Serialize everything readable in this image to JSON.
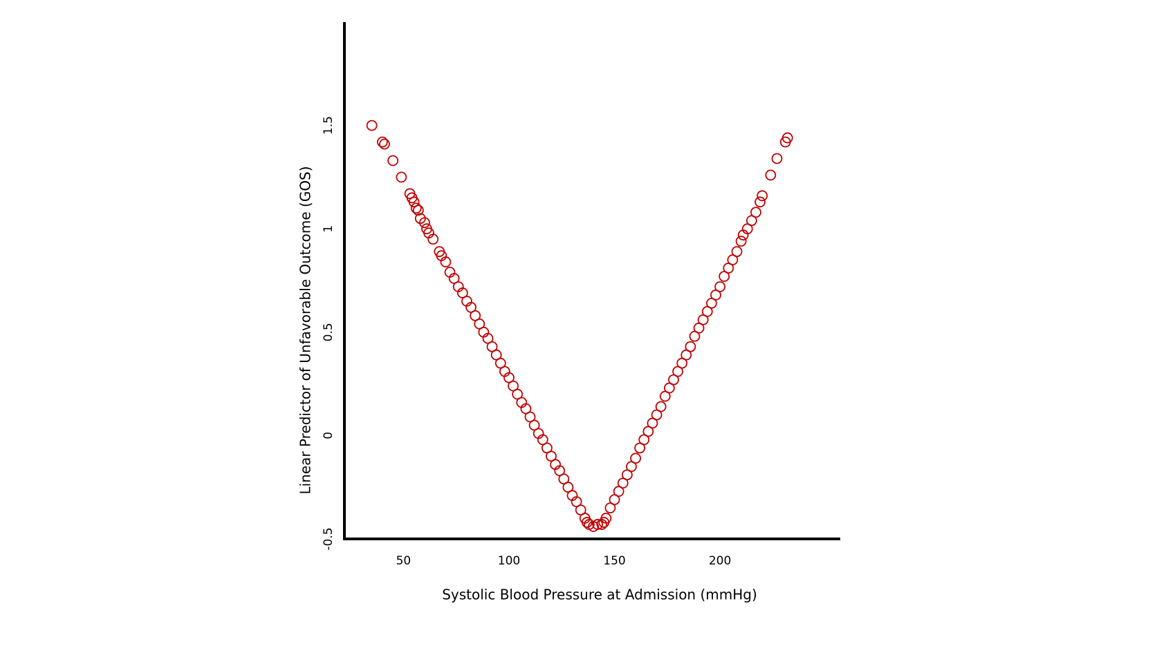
{
  "chart_data": {
    "type": "scatter",
    "x_label": "Systolic Blood Pressure at Admission (mmHg)",
    "y_label": "Linear Predictor of Unfavorable Outcome (GOS)",
    "xlim": [
      22,
      257
    ],
    "ylim": [
      -0.5,
      2
    ],
    "xticks": [
      50,
      100,
      150,
      200
    ],
    "yticks": [
      -0.5,
      0,
      0.5,
      1,
      1.5
    ],
    "grid": false,
    "series": [
      {
        "color": "#c00000",
        "x": [
          35,
          40,
          41,
          45,
          49,
          53,
          54,
          55,
          56,
          57,
          58,
          60,
          61,
          62,
          64,
          67,
          68,
          70,
          72,
          74,
          76,
          78,
          80,
          82,
          84,
          86,
          88,
          90,
          92,
          94,
          96,
          98,
          100,
          102,
          104,
          106,
          108,
          110,
          112,
          114,
          116,
          118,
          120,
          122,
          124,
          126,
          128,
          130,
          132,
          134,
          136,
          137,
          138,
          140,
          142,
          144,
          145,
          146,
          148,
          150,
          152,
          154,
          156,
          158,
          160,
          162,
          164,
          166,
          168,
          170,
          172,
          174,
          176,
          178,
          180,
          182,
          184,
          186,
          188,
          190,
          192,
          194,
          196,
          198,
          200,
          202,
          204,
          206,
          208,
          210,
          211,
          213,
          215,
          217,
          219,
          220,
          224,
          227,
          231,
          232
        ],
        "values": [
          1.5,
          1.42,
          1.41,
          1.33,
          1.25,
          1.17,
          1.15,
          1.13,
          1.1,
          1.09,
          1.05,
          1.03,
          1.0,
          0.98,
          0.95,
          0.89,
          0.87,
          0.84,
          0.79,
          0.76,
          0.72,
          0.69,
          0.65,
          0.62,
          0.58,
          0.54,
          0.5,
          0.47,
          0.43,
          0.39,
          0.35,
          0.31,
          0.28,
          0.24,
          0.2,
          0.16,
          0.13,
          0.09,
          0.05,
          0.01,
          -0.02,
          -0.06,
          -0.1,
          -0.14,
          -0.17,
          -0.21,
          -0.25,
          -0.29,
          -0.32,
          -0.36,
          -0.4,
          -0.42,
          -0.43,
          -0.44,
          -0.43,
          -0.43,
          -0.42,
          -0.4,
          -0.35,
          -0.31,
          -0.27,
          -0.23,
          -0.19,
          -0.15,
          -0.11,
          -0.06,
          -0.02,
          0.02,
          0.06,
          0.1,
          0.14,
          0.19,
          0.23,
          0.27,
          0.31,
          0.35,
          0.39,
          0.43,
          0.48,
          0.52,
          0.56,
          0.6,
          0.64,
          0.68,
          0.72,
          0.77,
          0.81,
          0.85,
          0.89,
          0.94,
          0.97,
          1.0,
          1.04,
          1.08,
          1.13,
          1.16,
          1.26,
          1.34,
          1.42,
          1.44
        ]
      }
    ]
  }
}
